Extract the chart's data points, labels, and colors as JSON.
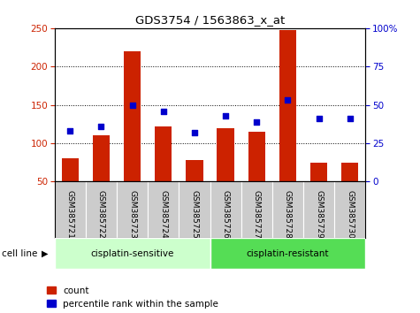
{
  "title": "GDS3754 / 1563863_x_at",
  "samples": [
    "GSM385721",
    "GSM385722",
    "GSM385723",
    "GSM385724",
    "GSM385725",
    "GSM385726",
    "GSM385727",
    "GSM385728",
    "GSM385729",
    "GSM385730"
  ],
  "count_values": [
    80,
    110,
    220,
    122,
    78,
    120,
    115,
    248,
    75,
    75
  ],
  "percentile_values": [
    33,
    36,
    50,
    46,
    32,
    43,
    39,
    53,
    41,
    41
  ],
  "groups": [
    {
      "label": "cisplatin-sensitive",
      "start": 0,
      "end": 5,
      "color": "#ccffcc"
    },
    {
      "label": "cisplatin-resistant",
      "start": 5,
      "end": 10,
      "color": "#55dd55"
    }
  ],
  "group_label": "cell line",
  "left_axis_color": "#cc2200",
  "right_axis_color": "#0000cc",
  "bar_color": "#cc2200",
  "dot_color": "#0000cc",
  "ylim_left": [
    50,
    250
  ],
  "ylim_right": [
    0,
    100
  ],
  "yticks_left": [
    50,
    100,
    150,
    200,
    250
  ],
  "yticks_right": [
    0,
    25,
    50,
    75,
    100
  ],
  "legend_count_label": "count",
  "legend_pct_label": "percentile rank within the sample",
  "background_color": "#ffffff",
  "grid_color": "#000000",
  "tick_label_bg": "#cccccc"
}
